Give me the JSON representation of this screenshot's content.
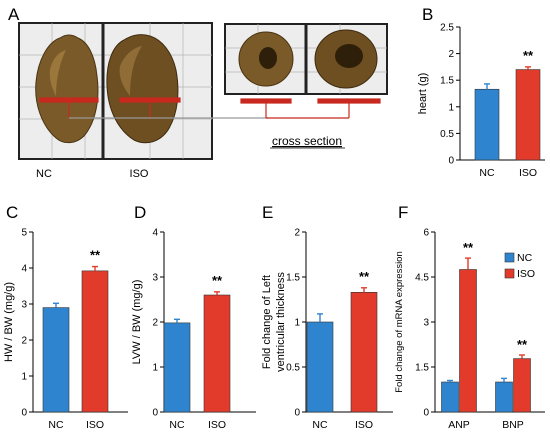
{
  "panel_labels": [
    "A",
    "B",
    "C",
    "D",
    "E",
    "F"
  ],
  "photo_panel": {
    "labels": [
      "NC",
      "ISO"
    ],
    "cross_section_label": "cross section"
  },
  "colors": {
    "nc": "#2f84d0",
    "iso": "#e23b2c",
    "marker": "#c8281e"
  },
  "significance": "**",
  "chart_data": [
    {
      "panel": "B",
      "type": "bar",
      "categories": [
        "NC",
        "ISO"
      ],
      "values": [
        1.33,
        1.7
      ],
      "errors": [
        0.1,
        0.05
      ],
      "ylabel": "heart (g)",
      "ylim": [
        0,
        2.5
      ],
      "yticks": [
        "0",
        "0.5",
        "1",
        "1.5",
        "2",
        "2.5"
      ],
      "significant": [
        "",
        "**"
      ]
    },
    {
      "panel": "C",
      "type": "bar",
      "categories": [
        "NC",
        "ISO"
      ],
      "values": [
        2.9,
        3.92
      ],
      "errors": [
        0.12,
        0.12
      ],
      "ylabel": "HW / BW  (mg/g)",
      "ylim": [
        0,
        5
      ],
      "yticks": [
        "0",
        "1",
        "2",
        "3",
        "4",
        "5"
      ],
      "significant": [
        "",
        "**"
      ]
    },
    {
      "panel": "D",
      "type": "bar",
      "categories": [
        "NC",
        "ISO"
      ],
      "values": [
        1.98,
        2.6
      ],
      "errors": [
        0.08,
        0.07
      ],
      "ylabel": "LVW / BW  (mg/g)",
      "ylim": [
        0,
        4
      ],
      "yticks": [
        "0",
        "1",
        "2",
        "3",
        "4"
      ],
      "significant": [
        "",
        "**"
      ]
    },
    {
      "panel": "E",
      "type": "bar",
      "categories": [
        "NC",
        "ISO"
      ],
      "values": [
        1.0,
        1.33
      ],
      "errors": [
        0.09,
        0.05
      ],
      "ylabel": [
        "Fold change of Left",
        "ventricular thickness"
      ],
      "ylim": [
        0,
        2
      ],
      "yticks": [
        "0",
        "0.5",
        "1",
        "1.5",
        "2"
      ],
      "significant": [
        "",
        "**"
      ]
    },
    {
      "panel": "F",
      "type": "bar",
      "categories": [
        "ANP",
        "BNP"
      ],
      "series": [
        {
          "name": "NC",
          "values": [
            1.0,
            1.0
          ],
          "errors": [
            0.05,
            0.12
          ]
        },
        {
          "name": "ISO",
          "values": [
            4.75,
            1.78
          ],
          "errors": [
            0.38,
            0.12
          ]
        }
      ],
      "ylabel": "Fold change of mRNA expression",
      "ylim": [
        0,
        6
      ],
      "yticks": [
        "0",
        "1.5",
        "3",
        "4.5",
        "6"
      ],
      "legend": "top-right",
      "significant": [
        "**",
        "**"
      ]
    }
  ]
}
